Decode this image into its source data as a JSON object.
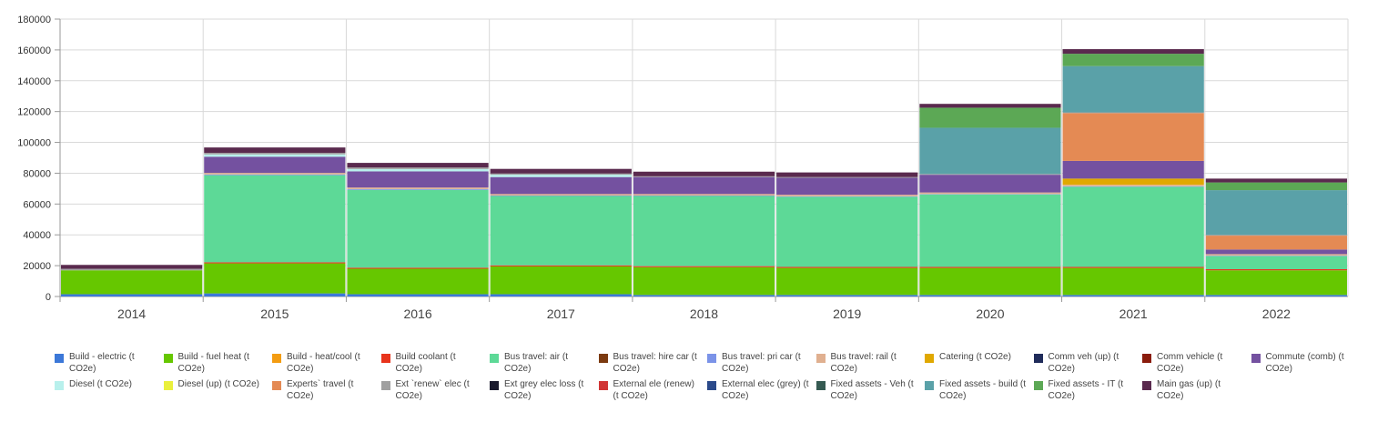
{
  "chart_data": {
    "type": "bar",
    "stacked": true,
    "categories": [
      "2014",
      "2015",
      "2016",
      "2017",
      "2018",
      "2019",
      "2020",
      "2021",
      "2022"
    ],
    "ylim": [
      0,
      180000
    ],
    "yticks": [
      "0",
      "20000",
      "40000",
      "60000",
      "80000",
      "100000",
      "120000",
      "140000",
      "160000",
      "180000"
    ],
    "grid": true,
    "legend_position": "bottom",
    "series": [
      {
        "name": "Build - electric (t CO2e)",
        "color": "#3c78d8",
        "values": [
          1500,
          2000,
          1500,
          1500,
          1000,
          1000,
          1000,
          1000,
          1000
        ]
      },
      {
        "name": "Build - fuel heat (t CO2e)",
        "color": "#66c700",
        "values": [
          15500,
          19500,
          16500,
          18000,
          18000,
          17500,
          17500,
          17500,
          16000
        ]
      },
      {
        "name": "Build - heat/cool (t CO2e)",
        "color": "#f39c12",
        "values": [
          0,
          0,
          0,
          0,
          0,
          0,
          0,
          0,
          0
        ]
      },
      {
        "name": "Build coolant (t CO2e)",
        "color": "#e8341c",
        "values": [
          0,
          700,
          700,
          700,
          700,
          700,
          700,
          700,
          700
        ]
      },
      {
        "name": "Bus travel: air (t CO2e)",
        "color": "#5dd997",
        "values": [
          0,
          56500,
          50500,
          45000,
          45500,
          45500,
          47000,
          52000,
          8500
        ]
      },
      {
        "name": "Bus travel: hire car (t CO2e)",
        "color": "#7b3a10",
        "values": [
          0,
          0,
          0,
          0,
          0,
          0,
          0,
          0,
          0
        ]
      },
      {
        "name": "Bus travel: pri car (t CO2e)",
        "color": "#7b93e8",
        "values": [
          0,
          500,
          500,
          300,
          300,
          300,
          300,
          300,
          300
        ]
      },
      {
        "name": "Bus travel: rail (t CO2e)",
        "color": "#e0b090",
        "values": [
          0,
          1000,
          1000,
          1000,
          1000,
          1000,
          1000,
          1000,
          1000
        ]
      },
      {
        "name": "Catering (t CO2e)",
        "color": "#e0a800",
        "values": [
          0,
          0,
          0,
          0,
          0,
          0,
          0,
          4000,
          0
        ]
      },
      {
        "name": "Comm veh (up) (t CO2e)",
        "color": "#1f2b5a",
        "values": [
          0,
          0,
          0,
          0,
          0,
          0,
          0,
          0,
          0
        ]
      },
      {
        "name": "Comm vehicle (t CO2e)",
        "color": "#8a1c0c",
        "values": [
          0,
          0,
          0,
          0,
          0,
          0,
          0,
          0,
          0
        ]
      },
      {
        "name": "Commute (comb) (t CO2e)",
        "color": "#7451a0",
        "values": [
          0,
          10500,
          10500,
          11000,
          11000,
          11000,
          11500,
          11500,
          3000
        ]
      },
      {
        "name": "Diesel (t CO2e)",
        "color": "#b8f0ec",
        "values": [
          0,
          1500,
          1500,
          1500,
          0,
          0,
          0,
          0,
          0
        ]
      },
      {
        "name": "Diesel (up) (t CO2e)",
        "color": "#eaf03c",
        "values": [
          0,
          0,
          0,
          0,
          0,
          0,
          0,
          0,
          0
        ]
      },
      {
        "name": "Experts` travel (t CO2e)",
        "color": "#e48a54",
        "values": [
          0,
          0,
          0,
          0,
          0,
          0,
          0,
          31000,
          9000
        ]
      },
      {
        "name": "Ext `renew` elec (t CO2e)",
        "color": "#a0a0a0",
        "values": [
          1000,
          1000,
          1000,
          800,
          500,
          500,
          500,
          500,
          500
        ]
      },
      {
        "name": "Ext grey elec loss (t CO2e)",
        "color": "#1a1a2e",
        "values": [
          0,
          0,
          0,
          0,
          0,
          0,
          0,
          0,
          0
        ]
      },
      {
        "name": "External ele (renew) (t CO2e)",
        "color": "#d13535",
        "values": [
          0,
          0,
          0,
          0,
          0,
          0,
          0,
          0,
          0
        ]
      },
      {
        "name": "External elec (grey) (t CO2e)",
        "color": "#2b4a8a",
        "values": [
          0,
          0,
          0,
          0,
          0,
          0,
          0,
          0,
          0
        ]
      },
      {
        "name": "Fixed assets - Veh (t CO2e)",
        "color": "#355a52",
        "values": [
          0,
          0,
          0,
          0,
          0,
          0,
          0,
          0,
          0
        ]
      },
      {
        "name": "Fixed assets - build (t CO2e)",
        "color": "#5aa1a8",
        "values": [
          0,
          0,
          0,
          0,
          0,
          0,
          30000,
          30000,
          29000
        ]
      },
      {
        "name": "Fixed assets - IT (t CO2e)",
        "color": "#5ca855",
        "values": [
          0,
          0,
          0,
          0,
          0,
          0,
          13000,
          8000,
          5000
        ]
      },
      {
        "name": "Main gas (up) (t CO2e)",
        "color": "#5a2a4e",
        "values": [
          2500,
          3500,
          3000,
          3000,
          3000,
          3000,
          2500,
          3000,
          2500
        ]
      }
    ]
  }
}
